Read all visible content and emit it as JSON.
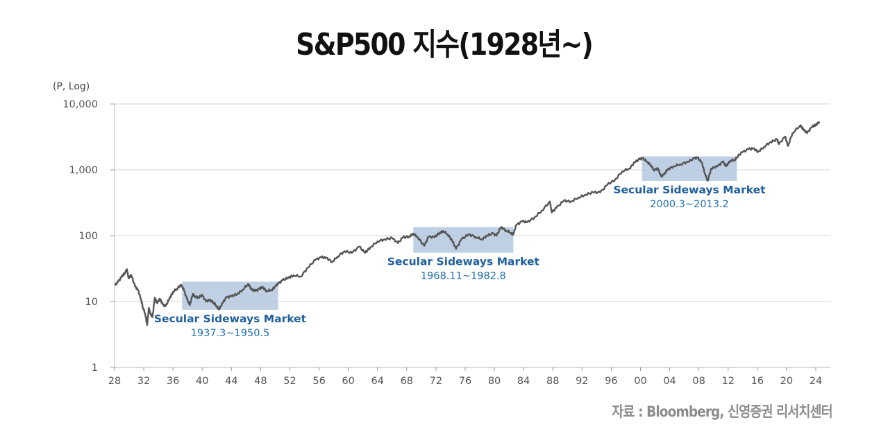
{
  "title": "S&P500 지수(1928년~)",
  "source": "자료 : Bloomberg, 신영증권 리서치센터",
  "chart_data": {
    "type": "line",
    "title": "S&P500 지수(1928년~)",
    "y_unit_label": "(P, Log)",
    "y_scale": "log",
    "ylim": [
      1,
      10000
    ],
    "xlim": [
      1928,
      2026
    ],
    "y_ticks": [
      {
        "value": 1,
        "label": "1"
      },
      {
        "value": 10,
        "label": "10"
      },
      {
        "value": 100,
        "label": "100"
      },
      {
        "value": 1000,
        "label": "1,000"
      },
      {
        "value": 10000,
        "label": "10,000"
      }
    ],
    "x_ticks": [
      {
        "value": 1928,
        "label": "28"
      },
      {
        "value": 1932,
        "label": "32"
      },
      {
        "value": 1936,
        "label": "36"
      },
      {
        "value": 1940,
        "label": "40"
      },
      {
        "value": 1944,
        "label": "44"
      },
      {
        "value": 1948,
        "label": "48"
      },
      {
        "value": 1952,
        "label": "52"
      },
      {
        "value": 1956,
        "label": "56"
      },
      {
        "value": 1960,
        "label": "60"
      },
      {
        "value": 1964,
        "label": "64"
      },
      {
        "value": 1968,
        "label": "68"
      },
      {
        "value": 1972,
        "label": "72"
      },
      {
        "value": 1976,
        "label": "76"
      },
      {
        "value": 1980,
        "label": "80"
      },
      {
        "value": 1984,
        "label": "84"
      },
      {
        "value": 1988,
        "label": "88"
      },
      {
        "value": 1992,
        "label": "92"
      },
      {
        "value": 1996,
        "label": "96"
      },
      {
        "value": 2000,
        "label": "00"
      },
      {
        "value": 2004,
        "label": "04"
      },
      {
        "value": 2008,
        "label": "08"
      },
      {
        "value": 2012,
        "label": "12"
      },
      {
        "value": 2016,
        "label": "16"
      },
      {
        "value": 2020,
        "label": "20"
      },
      {
        "value": 2024,
        "label": "24"
      }
    ],
    "grid": true,
    "line_color": "#555555",
    "highlight_color": "#b4c8e1",
    "annotation_color": "#1f6fb0",
    "series": [
      {
        "points": [
          [
            1928.0,
            17.5
          ],
          [
            1928.5,
            20.0
          ],
          [
            1929.0,
            24.0
          ],
          [
            1929.4,
            27.0
          ],
          [
            1929.7,
            31.0
          ],
          [
            1929.9,
            23.0
          ],
          [
            1930.3,
            25.0
          ],
          [
            1930.8,
            17.0
          ],
          [
            1931.2,
            15.0
          ],
          [
            1931.6,
            11.0
          ],
          [
            1931.9,
            8.0
          ],
          [
            1932.2,
            6.5
          ],
          [
            1932.45,
            4.4
          ],
          [
            1932.7,
            8.0
          ],
          [
            1932.9,
            6.5
          ],
          [
            1933.2,
            5.8
          ],
          [
            1933.5,
            11.5
          ],
          [
            1933.8,
            9.5
          ],
          [
            1934.2,
            11.0
          ],
          [
            1934.6,
            9.0
          ],
          [
            1935.0,
            8.5
          ],
          [
            1935.5,
            11.0
          ],
          [
            1936.0,
            14.0
          ],
          [
            1936.5,
            15.5
          ],
          [
            1937.1,
            18.0
          ],
          [
            1937.5,
            15.0
          ],
          [
            1937.9,
            11.0
          ],
          [
            1938.3,
            8.8
          ],
          [
            1938.7,
            13.0
          ],
          [
            1939.0,
            12.0
          ],
          [
            1939.5,
            11.5
          ],
          [
            1940.0,
            12.5
          ],
          [
            1940.5,
            10.0
          ],
          [
            1941.0,
            10.5
          ],
          [
            1941.5,
            9.8
          ],
          [
            1942.0,
            8.5
          ],
          [
            1942.3,
            7.6
          ],
          [
            1942.8,
            9.5
          ],
          [
            1943.3,
            11.5
          ],
          [
            1944.0,
            12.0
          ],
          [
            1944.8,
            13.0
          ],
          [
            1945.5,
            15.0
          ],
          [
            1946.3,
            18.5
          ],
          [
            1946.8,
            15.0
          ],
          [
            1947.3,
            14.5
          ],
          [
            1947.8,
            15.5
          ],
          [
            1948.3,
            16.5
          ],
          [
            1948.8,
            14.5
          ],
          [
            1949.5,
            15.0
          ],
          [
            1950.0,
            17.0
          ],
          [
            1950.5,
            19.0
          ],
          [
            1951.0,
            21.0
          ],
          [
            1951.8,
            23.0
          ],
          [
            1952.5,
            25.0
          ],
          [
            1953.5,
            24.0
          ],
          [
            1954.5,
            33.0
          ],
          [
            1955.5,
            43.0
          ],
          [
            1956.3,
            47.0
          ],
          [
            1957.0,
            46.0
          ],
          [
            1957.8,
            40.0
          ],
          [
            1958.5,
            48.0
          ],
          [
            1959.5,
            58.0
          ],
          [
            1960.5,
            55.0
          ],
          [
            1961.5,
            68.0
          ],
          [
            1962.3,
            55.0
          ],
          [
            1963.0,
            66.0
          ],
          [
            1964.0,
            82.0
          ],
          [
            1965.0,
            88.0
          ],
          [
            1966.0,
            92.0
          ],
          [
            1966.8,
            77.0
          ],
          [
            1967.5,
            95.0
          ],
          [
            1968.3,
            96.0
          ],
          [
            1968.9,
            108.0
          ],
          [
            1969.5,
            95.0
          ],
          [
            1970.4,
            70.0
          ],
          [
            1971.0,
            96.0
          ],
          [
            1971.8,
            95.0
          ],
          [
            1972.5,
            110.0
          ],
          [
            1973.0,
            118.0
          ],
          [
            1973.6,
            105.0
          ],
          [
            1974.2,
            85.0
          ],
          [
            1974.75,
            63.0
          ],
          [
            1975.5,
            88.0
          ],
          [
            1976.5,
            105.0
          ],
          [
            1977.5,
            95.0
          ],
          [
            1978.3,
            88.0
          ],
          [
            1979.0,
            100.0
          ],
          [
            1979.8,
            108.0
          ],
          [
            1980.3,
            100.0
          ],
          [
            1980.9,
            135.0
          ],
          [
            1981.6,
            120.0
          ],
          [
            1982.3,
            110.0
          ],
          [
            1982.6,
            105.0
          ],
          [
            1983.0,
            145.0
          ],
          [
            1983.8,
            165.0
          ],
          [
            1984.5,
            160.0
          ],
          [
            1985.5,
            190.0
          ],
          [
            1986.5,
            240.0
          ],
          [
            1987.6,
            330.0
          ],
          [
            1987.85,
            225.0
          ],
          [
            1988.5,
            265.0
          ],
          [
            1989.5,
            340.0
          ],
          [
            1990.5,
            330.0
          ],
          [
            1991.5,
            380.0
          ],
          [
            1992.5,
            420.0
          ],
          [
            1993.5,
            455.0
          ],
          [
            1994.5,
            455.0
          ],
          [
            1995.5,
            600.0
          ],
          [
            1996.5,
            700.0
          ],
          [
            1997.5,
            950.0
          ],
          [
            1998.5,
            1050.0
          ],
          [
            1999.2,
            1300.0
          ],
          [
            1999.9,
            1450.0
          ],
          [
            2000.3,
            1500.0
          ],
          [
            2000.9,
            1330.0
          ],
          [
            2001.5,
            1150.0
          ],
          [
            2001.8,
            1000.0
          ],
          [
            2002.4,
            1050.0
          ],
          [
            2002.8,
            800.0
          ],
          [
            2003.2,
            840.0
          ],
          [
            2003.7,
            1010.0
          ],
          [
            2004.5,
            1130.0
          ],
          [
            2005.5,
            1220.0
          ],
          [
            2006.5,
            1320.0
          ],
          [
            2007.4,
            1500.0
          ],
          [
            2007.8,
            1530.0
          ],
          [
            2008.4,
            1300.0
          ],
          [
            2008.8,
            900.0
          ],
          [
            2009.2,
            680.0
          ],
          [
            2009.7,
            1050.0
          ],
          [
            2010.5,
            1120.0
          ],
          [
            2011.3,
            1330.0
          ],
          [
            2011.7,
            1130.0
          ],
          [
            2012.3,
            1380.0
          ],
          [
            2012.9,
            1420.0
          ],
          [
            2013.2,
            1560.0
          ],
          [
            2013.9,
            1840.0
          ],
          [
            2014.8,
            2060.0
          ],
          [
            2015.5,
            2100.0
          ],
          [
            2016.1,
            1880.0
          ],
          [
            2016.9,
            2230.0
          ],
          [
            2017.8,
            2650.0
          ],
          [
            2018.7,
            2900.0
          ],
          [
            2018.95,
            2450.0
          ],
          [
            2019.8,
            3200.0
          ],
          [
            2020.2,
            2300.0
          ],
          [
            2020.8,
            3600.0
          ],
          [
            2021.9,
            4750.0
          ],
          [
            2022.3,
            4100.0
          ],
          [
            2022.8,
            3600.0
          ],
          [
            2023.5,
            4500.0
          ],
          [
            2024.0,
            4800.0
          ],
          [
            2024.5,
            5400.0
          ]
        ]
      }
    ],
    "annotations": [
      {
        "x_start": 1937.25,
        "x_end": 1950.4,
        "y_low": 7.5,
        "y_high": 20.0,
        "label": "Secular Sideways Market",
        "range": "1937.3~1950.5"
      },
      {
        "x_start": 1968.9,
        "x_end": 1982.6,
        "y_low": 55.0,
        "y_high": 135.0,
        "label": "Secular Sideways Market",
        "range": "1968.11~1982.8"
      },
      {
        "x_start": 2000.2,
        "x_end": 2013.2,
        "y_low": 680.0,
        "y_high": 1600.0,
        "label": "Secular Sideways Market",
        "range": "2000.3~2013.2"
      }
    ]
  }
}
